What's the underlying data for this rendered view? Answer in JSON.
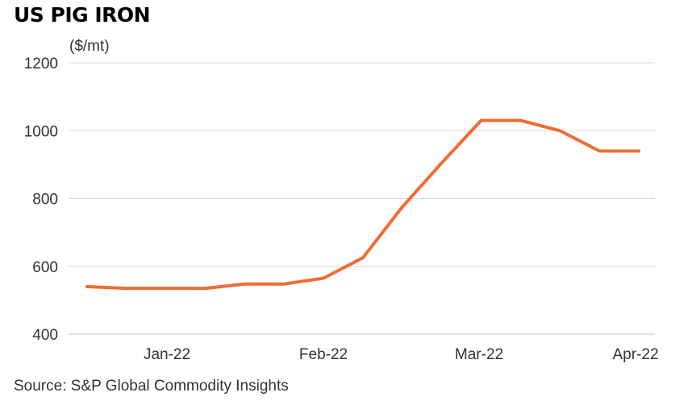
{
  "title": "US PIG IRON",
  "unit": "($/mt)",
  "source": "Source: S&P Global Commodity Insights",
  "colors": {
    "line": "#ef6c33",
    "grid": "#d9d9d9",
    "text": "#333333"
  },
  "chart_data": {
    "type": "line",
    "title": "US PIG IRON",
    "ylabel": "($/mt)",
    "xlabel": "",
    "ylim": [
      400,
      1200
    ],
    "yticks": [
      400,
      600,
      800,
      1000,
      1200
    ],
    "xtick_labels": [
      "Jan-22",
      "Feb-22",
      "Mar-22",
      "Apr-22"
    ],
    "grid": true,
    "series": [
      {
        "values": [
          540,
          535,
          535,
          535,
          548,
          548,
          565,
          625,
          775,
          905,
          1030,
          1030,
          1000,
          940,
          940
        ]
      }
    ]
  }
}
